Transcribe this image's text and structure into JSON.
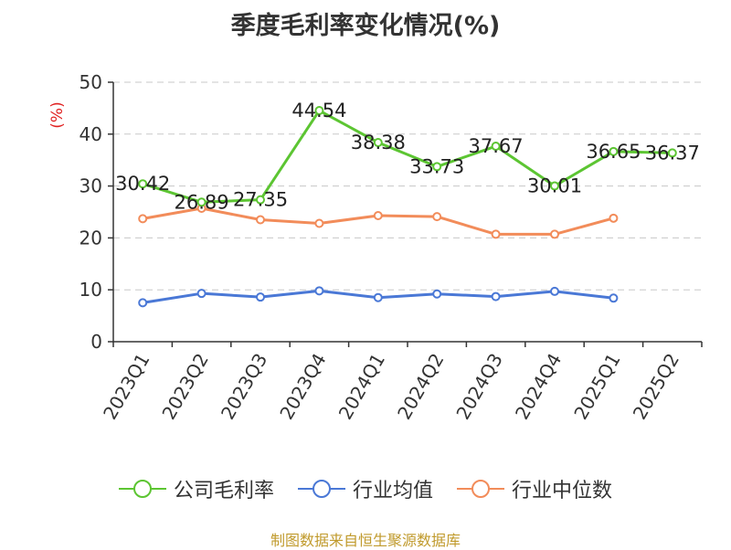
{
  "chart_data": {
    "type": "line",
    "title": "季度毛利率变化情况(%)",
    "ylabel": "(%)",
    "ylim": [
      0,
      50
    ],
    "yticks": [
      0,
      10,
      20,
      30,
      40,
      50
    ],
    "grid": true,
    "legend_position": "bottom",
    "categories": [
      "2023Q1",
      "2023Q2",
      "2023Q3",
      "2023Q4",
      "2024Q1",
      "2024Q2",
      "2024Q3",
      "2024Q4",
      "2025Q1",
      "2025Q2"
    ],
    "series": [
      {
        "name": "公司毛利率",
        "color": "#5cc532",
        "values": [
          30.42,
          26.89,
          27.35,
          44.54,
          38.38,
          33.73,
          37.67,
          30.01,
          36.65,
          36.37
        ],
        "labels": [
          "30.42",
          "26.89",
          "27.35",
          "44.54",
          "38.38",
          "33.73",
          "37.67",
          "30.01",
          "36.65",
          "36.37"
        ],
        "show_labels": true
      },
      {
        "name": "行业均值",
        "color": "#4a78d6",
        "values": [
          7.5,
          9.3,
          8.6,
          9.8,
          8.5,
          9.2,
          8.7,
          9.7,
          8.4,
          null
        ],
        "show_labels": false
      },
      {
        "name": "行业中位数",
        "color": "#f28c5a",
        "values": [
          23.7,
          25.7,
          23.5,
          22.8,
          24.3,
          24.1,
          20.7,
          20.7,
          23.8,
          null
        ],
        "show_labels": false
      }
    ]
  },
  "footer": "制图数据来自恒生聚源数据库"
}
